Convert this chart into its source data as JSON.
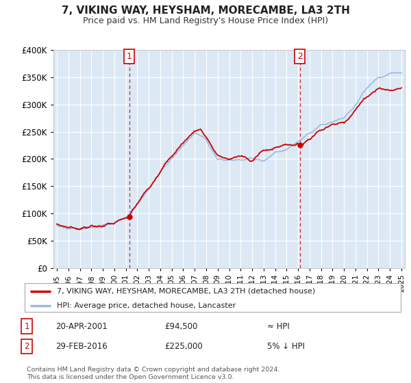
{
  "title": "7, VIKING WAY, HEYSHAM, MORECAMBE, LA3 2TH",
  "subtitle": "Price paid vs. HM Land Registry's House Price Index (HPI)",
  "legend_line1": "7, VIKING WAY, HEYSHAM, MORECAMBE, LA3 2TH (detached house)",
  "legend_line2": "HPI: Average price, detached house, Lancaster",
  "annotation1_date": "20-APR-2001",
  "annotation1_price": "£94,500",
  "annotation1_hpi": "≈ HPI",
  "annotation2_date": "29-FEB-2016",
  "annotation2_price": "£225,000",
  "annotation2_hpi": "5% ↓ HPI",
  "footer": "Contains HM Land Registry data © Crown copyright and database right 2024.\nThis data is licensed under the Open Government Licence v3.0.",
  "sale1_x": 2001.3,
  "sale1_y": 94500,
  "sale2_x": 2016.16,
  "sale2_y": 225000,
  "ylim": [
    0,
    400000
  ],
  "xlim": [
    1994.7,
    2025.3
  ],
  "plot_bg": "#dce9f5",
  "red_color": "#cc0000",
  "blue_color": "#99bbdd",
  "grid_color": "#ffffff"
}
